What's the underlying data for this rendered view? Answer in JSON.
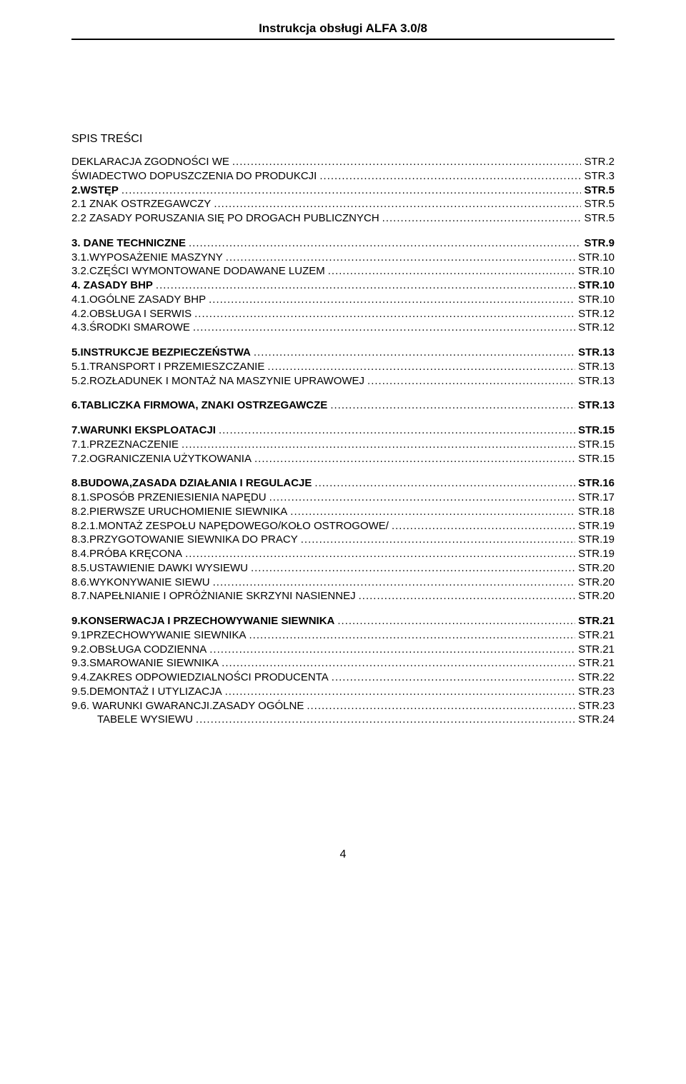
{
  "header": "Instrukcja obsługi ALFA 3.0/8",
  "section_title": "SPIS  TREŚCI",
  "footer": "4",
  "toc": [
    {
      "label": "DEKLARACJA  ZGODNOŚCI  WE",
      "page": "STR.2",
      "bold": false
    },
    {
      "label": "ŚWIADECTWO DOPUSZCZENIA DO PRODUKCJI",
      "page": "STR.3",
      "bold": false
    },
    {
      "label": "2.WSTĘP",
      "page": "STR.5",
      "bold": true
    },
    {
      "label": "2.1 ZNAK OSTRZEGAWCZY",
      "page": "STR.5",
      "bold": false
    },
    {
      "label": "2.2 ZASADY PORUSZANIA SIĘ PO DROGACH PUBLICZNYCH",
      "page": "STR.5",
      "bold": false
    },
    {
      "gap": true
    },
    {
      "label": "3. DANE TECHNICZNE",
      "page": "STR.9",
      "bold": true
    },
    {
      "label": "3.1.WYPOSAŻENIE MASZYNY",
      "page": "STR.10",
      "bold": false
    },
    {
      "label": "3.2.CZĘŚCI WYMONTOWANE DODAWANE LUZEM",
      "page": "STR.10",
      "bold": false
    },
    {
      "label": "4. ZASADY BHP",
      "page": "STR.10",
      "bold": true
    },
    {
      "label": "4.1.OGÓLNE ZASADY BHP",
      "page": "STR.10",
      "bold": false
    },
    {
      "label": "4.2.OBSŁUGA I SERWIS",
      "page": "STR.12",
      "bold": false
    },
    {
      "label": "4.3.ŚRODKI SMAROWE",
      "page": "STR.12",
      "bold": false
    },
    {
      "gap": true
    },
    {
      "label": "5.INSTRUKCJE BEZPIECZEŃSTWA",
      "page": "STR.13",
      "bold": true
    },
    {
      "label": "5.1.TRANSPORT I PRZEMIESZCZANIE",
      "page": "STR.13",
      "bold": false
    },
    {
      "label": "5.2.ROZŁADUNEK I MONTAŻ NA MASZYNIE UPRAWOWEJ",
      "page": "STR.13",
      "bold": false
    },
    {
      "gap": true
    },
    {
      "label": "6.TABLICZKA FIRMOWA, ZNAKI OSTRZEGAWCZE",
      "page": "STR.13",
      "bold": true
    },
    {
      "gap": true
    },
    {
      "label": "7.WARUNKI EKSPLOATACJI",
      "page": "STR.15",
      "bold": true
    },
    {
      "label": "7.1.PRZEZNACZENIE",
      "page": "STR.15",
      "bold": false
    },
    {
      "label": "7.2.OGRANICZENIA UŻYTKOWANIA",
      "page": "STR.15",
      "bold": false
    },
    {
      "gap": true
    },
    {
      "label": "8.BUDOWA,ZASADA DZIAŁANIA I REGULACJE",
      "page": "STR.16",
      "bold": true
    },
    {
      "label": "8.1.SPOSÓB PRZENIESIENIA NAPĘDU",
      "page": "STR.17",
      "bold": false
    },
    {
      "label": "8.2.PIERWSZE URUCHOMIENIE SIEWNIKA",
      "page": "STR.18",
      "bold": false
    },
    {
      "label": "8.2.1.MONTAŻ ZESPOŁU NAPĘDOWEGO/KOŁO OSTROGOWE/",
      "page": "STR.19",
      "bold": false
    },
    {
      "label": "8.3.PRZYGOTOWANIE SIEWNIKA DO PRACY",
      "page": "STR.19",
      "bold": false
    },
    {
      "label": "8.4.PRÓBA KRĘCONA",
      "page": "STR.19",
      "bold": false
    },
    {
      "label": "8.5.USTAWIENIE DAWKI WYSIEWU",
      "page": "STR.20",
      "bold": false
    },
    {
      "label": "8.6.WYKONYWANIE SIEWU",
      "page": "STR.20",
      "bold": false
    },
    {
      "label": "8.7.NAPEŁNIANIE I OPRÓŻNIANIE SKRZYNI NASIENNEJ",
      "page": "STR.20",
      "bold": false
    },
    {
      "gap": true
    },
    {
      "label": "9.KONSERWACJA I PRZECHOWYWANIE SIEWNIKA",
      "page": "STR.21",
      "bold": true
    },
    {
      "label": "9.1PRZECHOWYWANIE SIEWNIKA",
      "page": "STR.21",
      "bold": false
    },
    {
      "label": "9.2.OBSŁUGA CODZIENNA",
      "page": "STR.21",
      "bold": false
    },
    {
      "label": "9.3.SMAROWANIE SIEWNIKA",
      "page": "STR.21",
      "bold": false
    },
    {
      "label": "9.4.ZAKRES ODPOWIEDZIALNOŚCI PRODUCENTA",
      "page": "STR.22",
      "bold": false
    },
    {
      "label": "9.5.DEMONTAŻ  I  UTYLIZACJA",
      "page": "STR.23",
      "bold": false
    },
    {
      "label": "9.6. WARUNKI GWARANCJI.ZASADY OGÓLNE",
      "page": "STR.23",
      "bold": false
    },
    {
      "label": "TABELE WYSIEWU ",
      "page": "STR.24",
      "bold": false,
      "indent": true
    }
  ]
}
